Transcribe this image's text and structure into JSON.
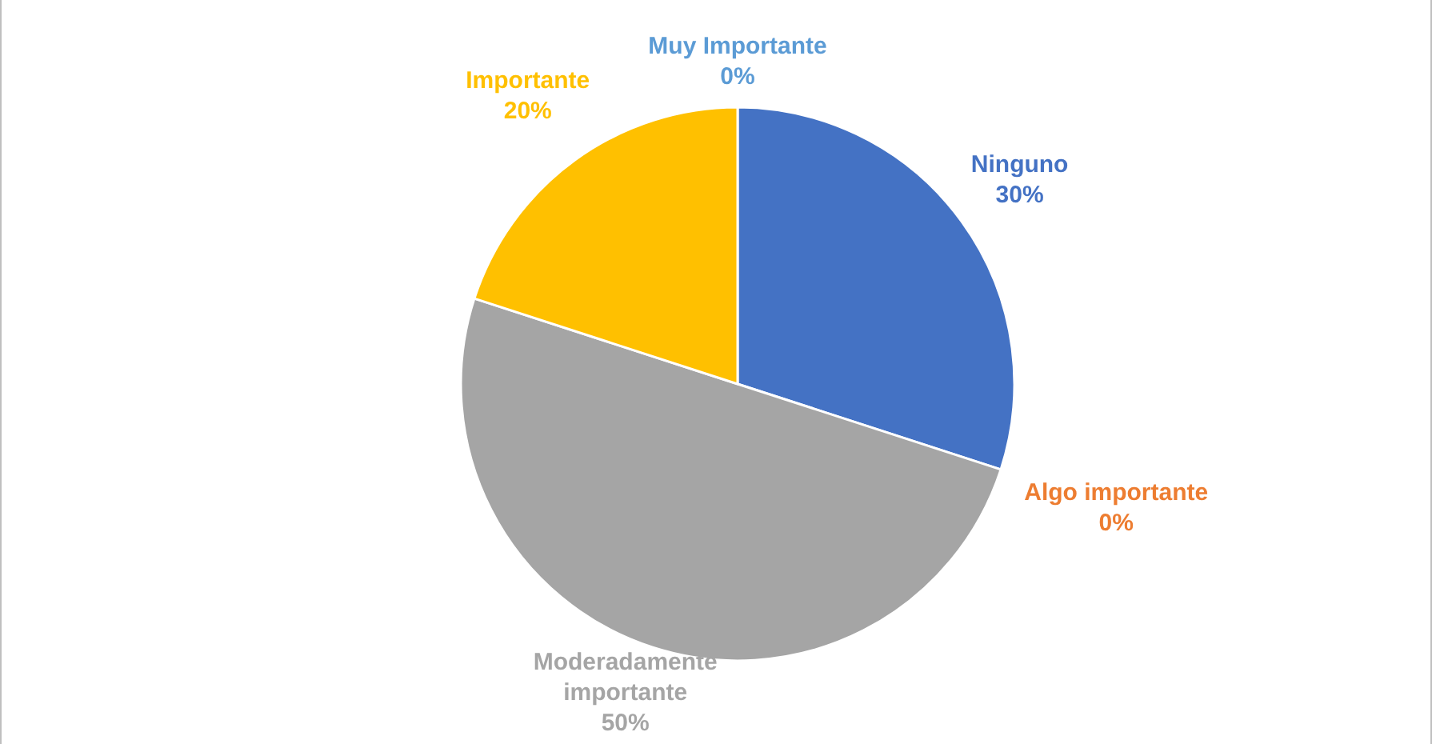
{
  "chart_data": {
    "type": "pie",
    "categories": [
      "Ninguno",
      "Algo importante",
      "Moderadamente importante",
      "Importante",
      "Muy Importante"
    ],
    "values": [
      30,
      0,
      50,
      20,
      0
    ],
    "value_labels": [
      "30%",
      "0%",
      "50%",
      "20%",
      "0%"
    ],
    "colors": [
      "#4472c4",
      "#ed7d31",
      "#a5a5a5",
      "#ffc000",
      "#5b9bd5"
    ],
    "legend": false
  }
}
